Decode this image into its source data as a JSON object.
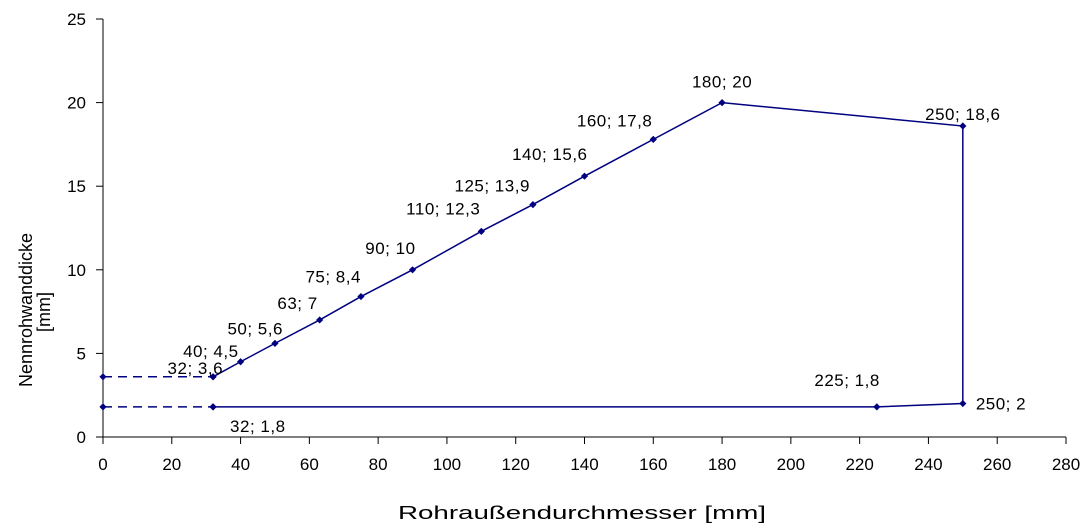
{
  "chart_data": {
    "type": "line",
    "title": "",
    "xlabel": "Rohraußendurchmesser [mm]",
    "ylabel_lines": [
      "Nennrohwanddicke",
      "[mm]"
    ],
    "xlim": [
      0,
      280
    ],
    "ylim": [
      0,
      25
    ],
    "xticks": [
      0,
      20,
      40,
      60,
      80,
      100,
      120,
      140,
      160,
      180,
      200,
      220,
      240,
      260,
      280
    ],
    "yticks": [
      0,
      5,
      10,
      15,
      20,
      25
    ],
    "grid": false,
    "line_color": "#000080",
    "axis_color": "#000000",
    "series": [
      {
        "style": "solid",
        "points": [
          {
            "x": 32,
            "y": 3.6,
            "label": "32; 3,6"
          },
          {
            "x": 40,
            "y": 4.5,
            "label": "40; 4,5"
          },
          {
            "x": 50,
            "y": 5.6,
            "label": "50; 5,6"
          },
          {
            "x": 63,
            "y": 7,
            "label": "63; 7"
          },
          {
            "x": 75,
            "y": 8.4,
            "label": "75; 8,4"
          },
          {
            "x": 90,
            "y": 10,
            "label": "90; 10"
          },
          {
            "x": 110,
            "y": 12.3,
            "label": "110; 12,3"
          },
          {
            "x": 125,
            "y": 13.9,
            "label": "125; 13,9"
          },
          {
            "x": 140,
            "y": 15.6,
            "label": "140; 15,6"
          },
          {
            "x": 160,
            "y": 17.8,
            "label": "160; 17,8"
          },
          {
            "x": 180,
            "y": 20,
            "label": "180; 20"
          },
          {
            "x": 250,
            "y": 18.6,
            "label": "250; 18,6"
          },
          {
            "x": 250,
            "y": 2,
            "label": "250; 2"
          },
          {
            "x": 225,
            "y": 1.8,
            "label": "225; 1,8"
          },
          {
            "x": 32,
            "y": 1.8,
            "label": "32; 1,8"
          }
        ]
      },
      {
        "style": "dashed",
        "points": [
          {
            "x": 0,
            "y": 3.6,
            "label": ""
          },
          {
            "x": 32,
            "y": 3.6,
            "label": ""
          }
        ]
      },
      {
        "style": "dashed",
        "points": [
          {
            "x": 0,
            "y": 1.8,
            "label": ""
          },
          {
            "x": 32,
            "y": 1.8,
            "label": ""
          }
        ]
      }
    ]
  }
}
